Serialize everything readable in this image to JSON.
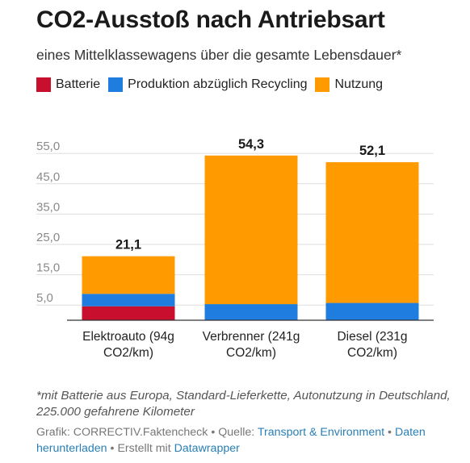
{
  "header": {
    "title": "CO2-Ausstoß nach Antriebsart",
    "subtitle": "eines Mittelklassewagens über die gesamte Lebensdauer*"
  },
  "colors": {
    "batterie": "#c8102e",
    "produktion": "#1e7ddf",
    "nutzung": "#ff9a00"
  },
  "chart_data": {
    "type": "bar",
    "stacked": true,
    "categories": [
      "Elektroauto (94g CO2/km)",
      "Verbrenner (241g CO2/km)",
      "Diesel (231g CO2/km)"
    ],
    "category_lines": [
      [
        "Elektroauto (94g",
        "CO2/km)"
      ],
      [
        "Verbrenner (241g",
        "CO2/km)"
      ],
      [
        "Diesel (231g",
        "CO2/km)"
      ]
    ],
    "series": [
      {
        "name": "Batterie",
        "values": [
          4.6,
          0,
          0
        ]
      },
      {
        "name": "Produktion abzüglich Recycling",
        "values": [
          4.1,
          5.3,
          5.7
        ]
      },
      {
        "name": "Nutzung",
        "values": [
          12.4,
          49.0,
          46.4
        ]
      }
    ],
    "totals": [
      21.1,
      54.3,
      52.1
    ],
    "total_labels": [
      "21,1",
      "54,3",
      "52,1"
    ],
    "yticks": [
      5.0,
      15.0,
      25.0,
      35.0,
      45.0,
      55.0
    ],
    "ytick_labels": [
      "5,0",
      "15,0",
      "25,0",
      "35,0",
      "45,0",
      "55,0"
    ],
    "ylim": [
      0,
      57
    ],
    "grid": true,
    "legend_position": "top-left"
  },
  "footnote": "*mit Batterie aus Europa, Standard-Lieferkette, Autonutzung in Deutschland, 225.000 gefahrene Kilometer",
  "credits": {
    "grafik_label": "Grafik:",
    "grafik_value": "CORRECTIV.Faktencheck",
    "separator": "•",
    "quelle_label": "Quelle:",
    "quelle_link": "Transport & Environment",
    "download_link": "Daten herunterladen",
    "created_label": "Erstellt mit",
    "created_link": "Datawrapper"
  }
}
